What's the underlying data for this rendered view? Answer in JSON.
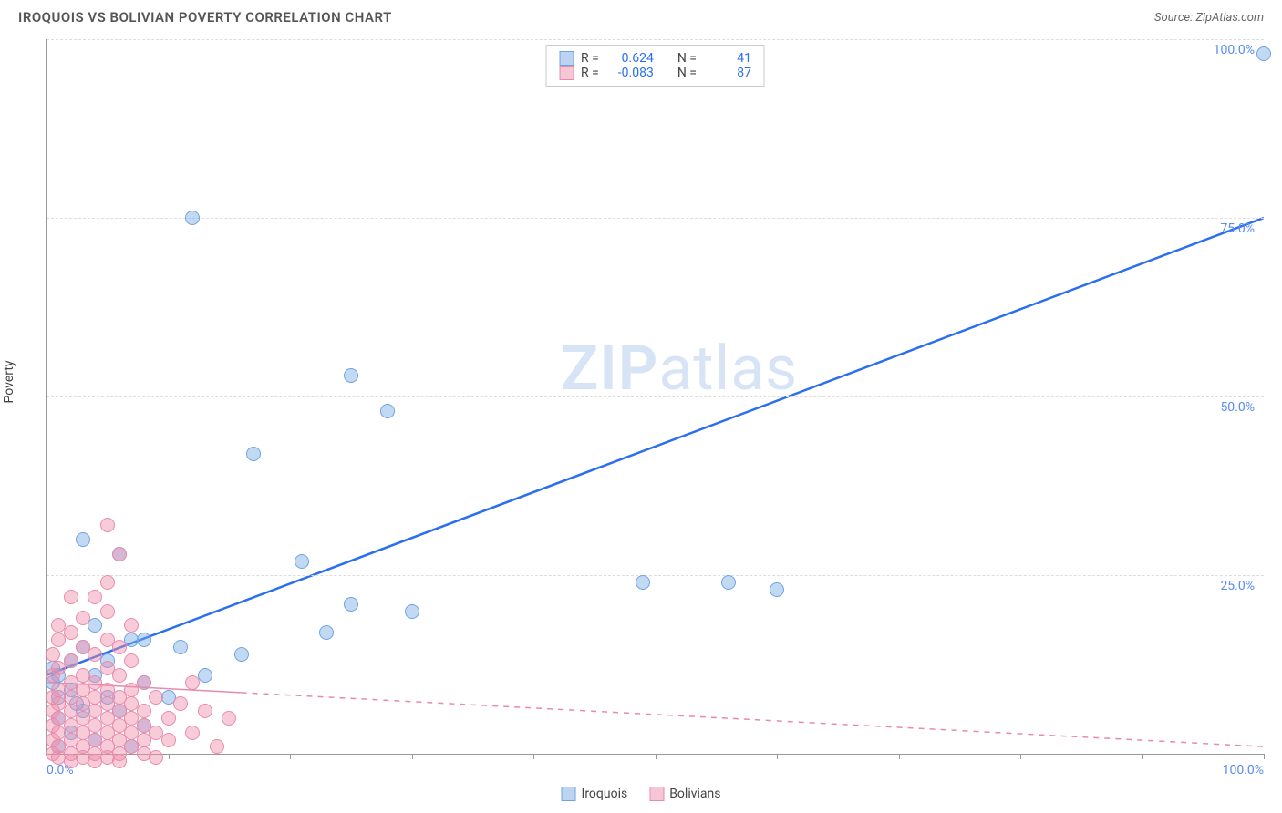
{
  "header": {
    "title": "IROQUOIS VS BOLIVIAN POVERTY CORRELATION CHART",
    "source_prefix": "Source: ",
    "source_name": "ZipAtlas.com"
  },
  "chart": {
    "type": "scatter",
    "y_axis_label": "Poverty",
    "xlim": [
      0,
      100
    ],
    "ylim": [
      0,
      100
    ],
    "x_ticks": [
      0,
      10,
      20,
      30,
      40,
      50,
      60,
      70,
      80,
      90,
      100
    ],
    "x_tick_labels_shown": {
      "0": "0.0%",
      "100": "100.0%"
    },
    "y_ticks": [
      25,
      50,
      75,
      100
    ],
    "y_tick_labels": {
      "25": "25.0%",
      "50": "50.0%",
      "75": "75.0%",
      "100": "100.0%"
    },
    "grid_color": "#dddddd",
    "axis_color": "#999999",
    "background_color": "#ffffff",
    "tick_label_color": "#5b8def",
    "point_radius": 8,
    "watermark_text_bold": "ZIP",
    "watermark_text_rest": "atlas",
    "watermark_color": "#b8cef0",
    "series": [
      {
        "name": "Iroquois",
        "color_fill": "rgba(120,170,230,0.45)",
        "color_stroke": "#6fa3e0",
        "swatch_fill": "#bcd4f2",
        "swatch_border": "#6fa3e0",
        "trend": {
          "x1": 0,
          "y1": 11,
          "x2": 100,
          "y2": 75,
          "color": "#2b6ef0",
          "width": 2.5,
          "dash": false
        },
        "stats": {
          "R": "0.624",
          "N": "41"
        },
        "points": [
          [
            100,
            100
          ],
          [
            12,
            77
          ],
          [
            25,
            55
          ],
          [
            28,
            50
          ],
          [
            17,
            44
          ],
          [
            3,
            32
          ],
          [
            6,
            30
          ],
          [
            21,
            29
          ],
          [
            49,
            26
          ],
          [
            56,
            26
          ],
          [
            60,
            25
          ],
          [
            25,
            23
          ],
          [
            30,
            22
          ],
          [
            23,
            19
          ],
          [
            7,
            18
          ],
          [
            11,
            17
          ],
          [
            3,
            17
          ],
          [
            5,
            15
          ],
          [
            16,
            16
          ],
          [
            13,
            13
          ],
          [
            2,
            15
          ],
          [
            0.5,
            14
          ],
          [
            4,
            13
          ],
          [
            1,
            13
          ],
          [
            8,
            12
          ],
          [
            2,
            11
          ],
          [
            5,
            10
          ],
          [
            1,
            10
          ],
          [
            10,
            10
          ],
          [
            3,
            8
          ],
          [
            6,
            8
          ],
          [
            1,
            7
          ],
          [
            8,
            6
          ],
          [
            2,
            5
          ],
          [
            4,
            4
          ],
          [
            7,
            3
          ],
          [
            1,
            3
          ],
          [
            8,
            18
          ],
          [
            4,
            20
          ],
          [
            0.5,
            12
          ],
          [
            2.5,
            9
          ]
        ]
      },
      {
        "name": "Bolivians",
        "color_fill": "rgba(240,140,170,0.45)",
        "color_stroke": "#e88bab",
        "swatch_fill": "#f6c6d6",
        "swatch_border": "#e88bab",
        "trend": {
          "x1": 0,
          "y1": 10,
          "x2": 100,
          "y2": 1,
          "color": "#e88bab",
          "width": 1.5,
          "dash": true,
          "solid_until_x": 16
        },
        "stats": {
          "R": "-0.083",
          "N": "87"
        },
        "points": [
          [
            5,
            34
          ],
          [
            6,
            30
          ],
          [
            5,
            26
          ],
          [
            4,
            24
          ],
          [
            2,
            24
          ],
          [
            5,
            22
          ],
          [
            3,
            21
          ],
          [
            1,
            20
          ],
          [
            7,
            20
          ],
          [
            2,
            19
          ],
          [
            5,
            18
          ],
          [
            1,
            18
          ],
          [
            3,
            17
          ],
          [
            6,
            17
          ],
          [
            0.5,
            16
          ],
          [
            4,
            16
          ],
          [
            2,
            15
          ],
          [
            7,
            15
          ],
          [
            1,
            14
          ],
          [
            5,
            14
          ],
          [
            3,
            13
          ],
          [
            0.5,
            13
          ],
          [
            6,
            13
          ],
          [
            2,
            12
          ],
          [
            4,
            12
          ],
          [
            8,
            12
          ],
          [
            12,
            12
          ],
          [
            1,
            11
          ],
          [
            3,
            11
          ],
          [
            5,
            11
          ],
          [
            7,
            11
          ],
          [
            0.5,
            10
          ],
          [
            2,
            10
          ],
          [
            4,
            10
          ],
          [
            6,
            10
          ],
          [
            9,
            10
          ],
          [
            1,
            9
          ],
          [
            3,
            9
          ],
          [
            5,
            9
          ],
          [
            7,
            9
          ],
          [
            11,
            9
          ],
          [
            0.5,
            8
          ],
          [
            2,
            8
          ],
          [
            4,
            8
          ],
          [
            6,
            8
          ],
          [
            8,
            8
          ],
          [
            13,
            8
          ],
          [
            1,
            7
          ],
          [
            3,
            7
          ],
          [
            5,
            7
          ],
          [
            7,
            7
          ],
          [
            15,
            7
          ],
          [
            10,
            7
          ],
          [
            0.5,
            6
          ],
          [
            2,
            6
          ],
          [
            4,
            6
          ],
          [
            6,
            6
          ],
          [
            8,
            6
          ],
          [
            1,
            5
          ],
          [
            3,
            5
          ],
          [
            5,
            5
          ],
          [
            7,
            5
          ],
          [
            9,
            5
          ],
          [
            12,
            5
          ],
          [
            0.5,
            4
          ],
          [
            2,
            4
          ],
          [
            4,
            4
          ],
          [
            6,
            4
          ],
          [
            8,
            4
          ],
          [
            10,
            4
          ],
          [
            1,
            3
          ],
          [
            3,
            3
          ],
          [
            5,
            3
          ],
          [
            7,
            3
          ],
          [
            14,
            3
          ],
          [
            0.5,
            2
          ],
          [
            2,
            2
          ],
          [
            4,
            2
          ],
          [
            6,
            2
          ],
          [
            8,
            2
          ],
          [
            1,
            1.5
          ],
          [
            3,
            1.5
          ],
          [
            5,
            1.5
          ],
          [
            9,
            1.5
          ],
          [
            2,
            1
          ],
          [
            4,
            1
          ],
          [
            6,
            1
          ]
        ]
      }
    ],
    "legend_top": {
      "R_label": "R =",
      "N_label": "N ="
    },
    "legend_bottom_labels": [
      "Iroquois",
      "Bolivians"
    ]
  }
}
